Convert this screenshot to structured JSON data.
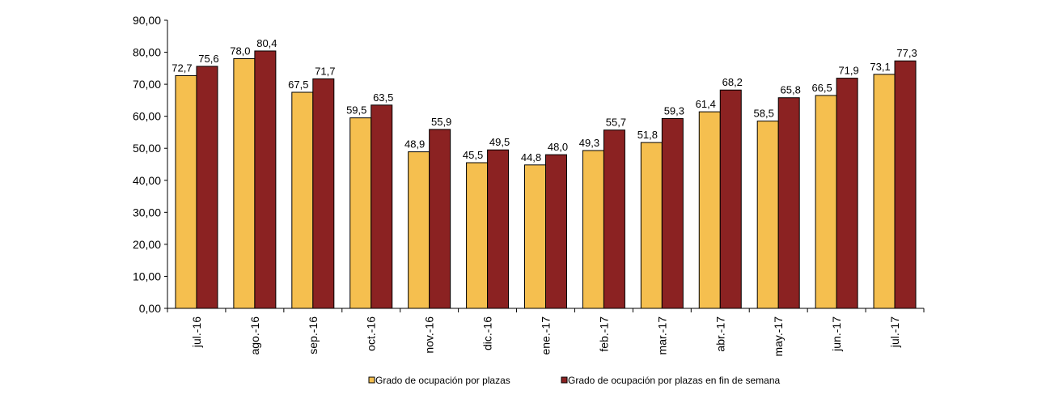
{
  "chart_data": {
    "type": "bar",
    "categories": [
      "jul.-16",
      "ago.-16",
      "sep.-16",
      "oct.-16",
      "nov.-16",
      "dic.-16",
      "ene.-17",
      "feb.-17",
      "mar.-17",
      "abr.-17",
      "may.-17",
      "jun.-17",
      "jul.-17"
    ],
    "series": [
      {
        "name": "Grado de ocupación por plazas",
        "color": "#f5bf4f",
        "values": [
          72.7,
          78.0,
          67.5,
          59.5,
          48.9,
          45.5,
          44.8,
          49.3,
          51.8,
          61.4,
          58.5,
          66.5,
          73.1
        ],
        "labels": [
          "72,7",
          "78,0",
          "67,5",
          "59,5",
          "48,9",
          "45,5",
          "44,8",
          "49,3",
          "51,8",
          "61,4",
          "58,5",
          "66,5",
          "73,1"
        ]
      },
      {
        "name": "Grado de ocupación por plazas en fin de semana",
        "color": "#8b2222",
        "values": [
          75.6,
          80.4,
          71.7,
          63.5,
          55.9,
          49.5,
          48.0,
          55.7,
          59.3,
          68.2,
          65.8,
          71.9,
          77.3
        ],
        "labels": [
          "75,6",
          "80,4",
          "71,7",
          "63,5",
          "55,9",
          "49,5",
          "48,0",
          "55,7",
          "59,3",
          "68,2",
          "65,8",
          "71,9",
          "77,3"
        ]
      }
    ],
    "ylim": [
      0,
      90
    ],
    "yticks": [
      0,
      10,
      20,
      30,
      40,
      50,
      60,
      70,
      80,
      90
    ],
    "ytick_labels": [
      "0,00",
      "10,00",
      "20,00",
      "30,00",
      "40,00",
      "50,00",
      "60,00",
      "70,00",
      "80,00",
      "90,00"
    ],
    "grid": false,
    "legend_position": "bottom",
    "title": "",
    "xlabel": "",
    "ylabel": ""
  }
}
